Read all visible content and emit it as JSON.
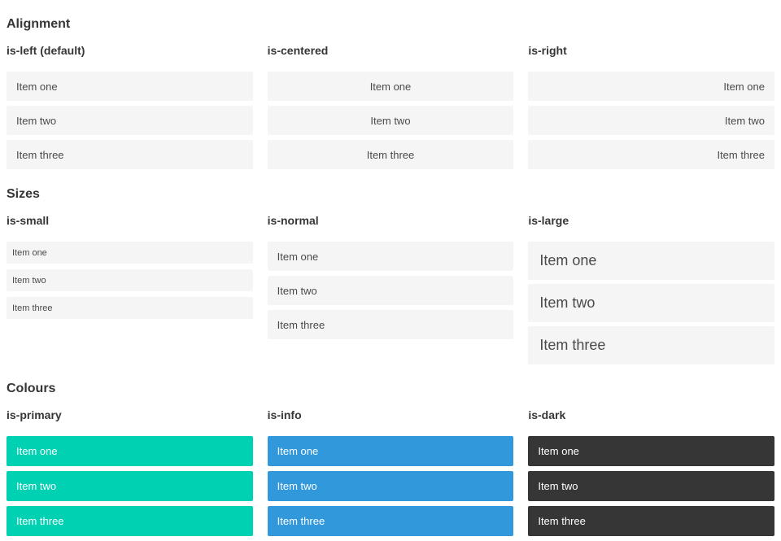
{
  "colors": {
    "primary": "#00d1b2",
    "info": "#3298dc",
    "dark": "#363636",
    "item_background": "#f5f5f5",
    "item_text": "#4a4a4a",
    "heading_text": "#363636"
  },
  "sections": [
    {
      "title": "Alignment",
      "columns": [
        {
          "subtitle": "is-left (default)",
          "modifier": "is-left",
          "items": [
            "Item one",
            "Item two",
            "Item three"
          ]
        },
        {
          "subtitle": "is-centered",
          "modifier": "is-centered",
          "items": [
            "Item one",
            "Item two",
            "Item three"
          ]
        },
        {
          "subtitle": "is-right",
          "modifier": "is-right",
          "items": [
            "Item one",
            "Item two",
            "Item three"
          ]
        }
      ]
    },
    {
      "title": "Sizes",
      "columns": [
        {
          "subtitle": "is-small",
          "modifier": "is-small",
          "items": [
            "Item one",
            "Item two",
            "Item three"
          ]
        },
        {
          "subtitle": "is-normal",
          "modifier": "is-normal",
          "items": [
            "Item one",
            "Item two",
            "Item three"
          ]
        },
        {
          "subtitle": "is-large",
          "modifier": "is-large",
          "items": [
            "Item one",
            "Item two",
            "Item three"
          ]
        }
      ]
    },
    {
      "title": "Colours",
      "columns": [
        {
          "subtitle": "is-primary",
          "modifier": "is-primary",
          "items": [
            "Item one",
            "Item two",
            "Item three"
          ]
        },
        {
          "subtitle": "is-info",
          "modifier": "is-info",
          "items": [
            "Item one",
            "Item two",
            "Item three"
          ]
        },
        {
          "subtitle": "is-dark",
          "modifier": "is-dark",
          "items": [
            "Item one",
            "Item two",
            "Item three"
          ]
        }
      ]
    }
  ]
}
